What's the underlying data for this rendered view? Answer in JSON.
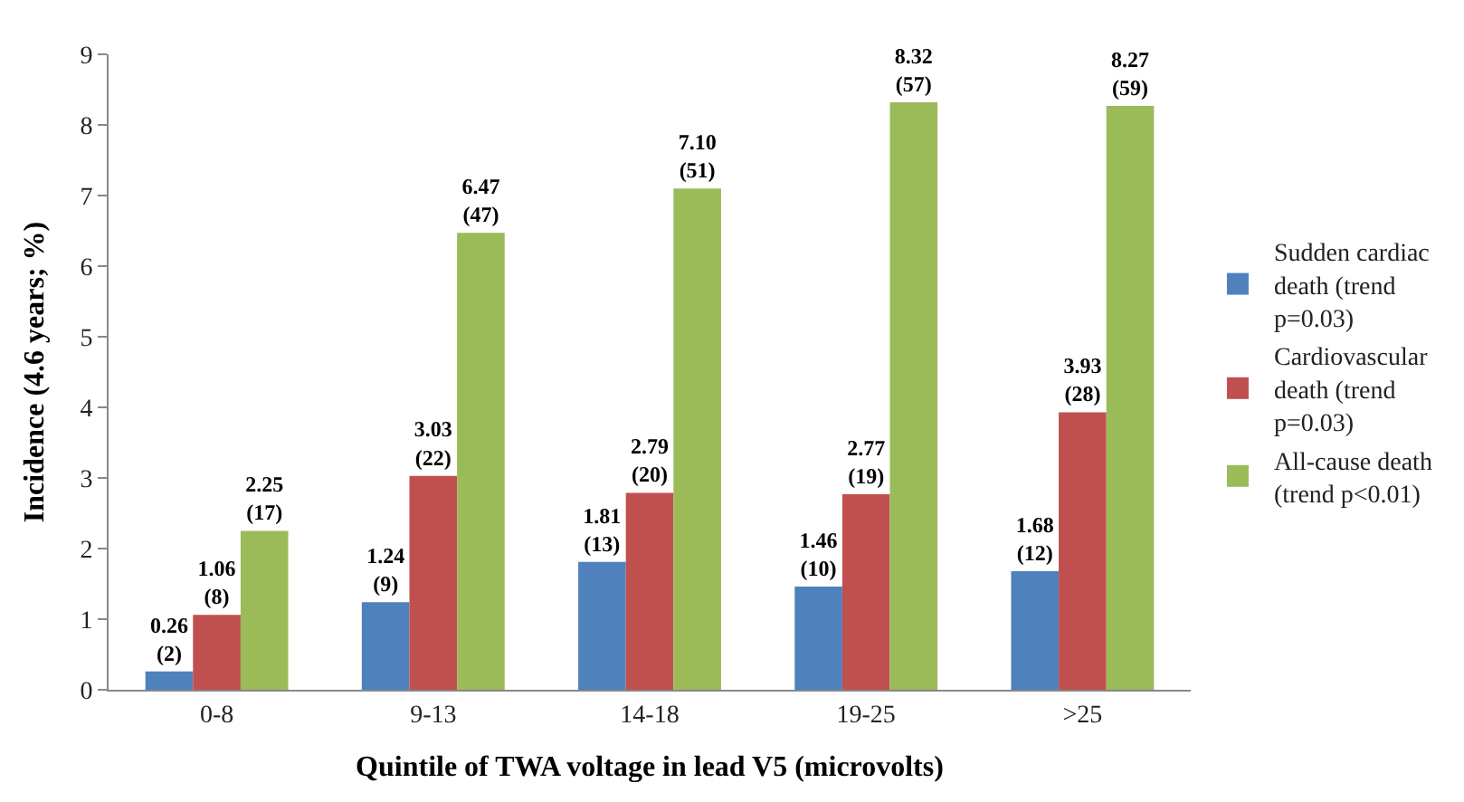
{
  "chart_data": {
    "type": "bar",
    "xlabel": "Quintile of TWA voltage in lead V5 (microvolts)",
    "ylabel": "Incidence (4.6 years; %)",
    "categories": [
      "0-8",
      "9-13",
      "14-18",
      "19-25",
      ">25"
    ],
    "series": [
      {
        "name": "Sudden cardiac death (trend p=0.03)",
        "color": "#4f81bd",
        "values": [
          0.26,
          1.24,
          1.81,
          1.46,
          1.68
        ],
        "value_labels": [
          "0.26\n(2)",
          "1.24\n(9)",
          "1.81\n(13)",
          "1.46\n(10)",
          "1.68\n(12)"
        ]
      },
      {
        "name": "Cardiovascular death (trend p=0.03)",
        "color": "#c0504d",
        "values": [
          1.06,
          3.03,
          2.79,
          2.77,
          3.93
        ],
        "value_labels": [
          "1.06\n(8)",
          "3.03\n(22)",
          "2.79\n(20)",
          "2.77\n(19)",
          "3.93\n(28)"
        ]
      },
      {
        "name": "All-cause death (trend p<0.01)",
        "color": "#9bbb59",
        "values": [
          2.25,
          6.47,
          7.1,
          8.32,
          8.27
        ],
        "value_labels": [
          "2.25\n(17)",
          "6.47\n(47)",
          "7.10\n(51)",
          "8.32\n(57)",
          "8.27\n(59)"
        ]
      }
    ],
    "ylim": [
      0,
      9
    ],
    "yticks": [
      0,
      1,
      2,
      3,
      4,
      5,
      6,
      7,
      8,
      9
    ],
    "legend": "right"
  }
}
